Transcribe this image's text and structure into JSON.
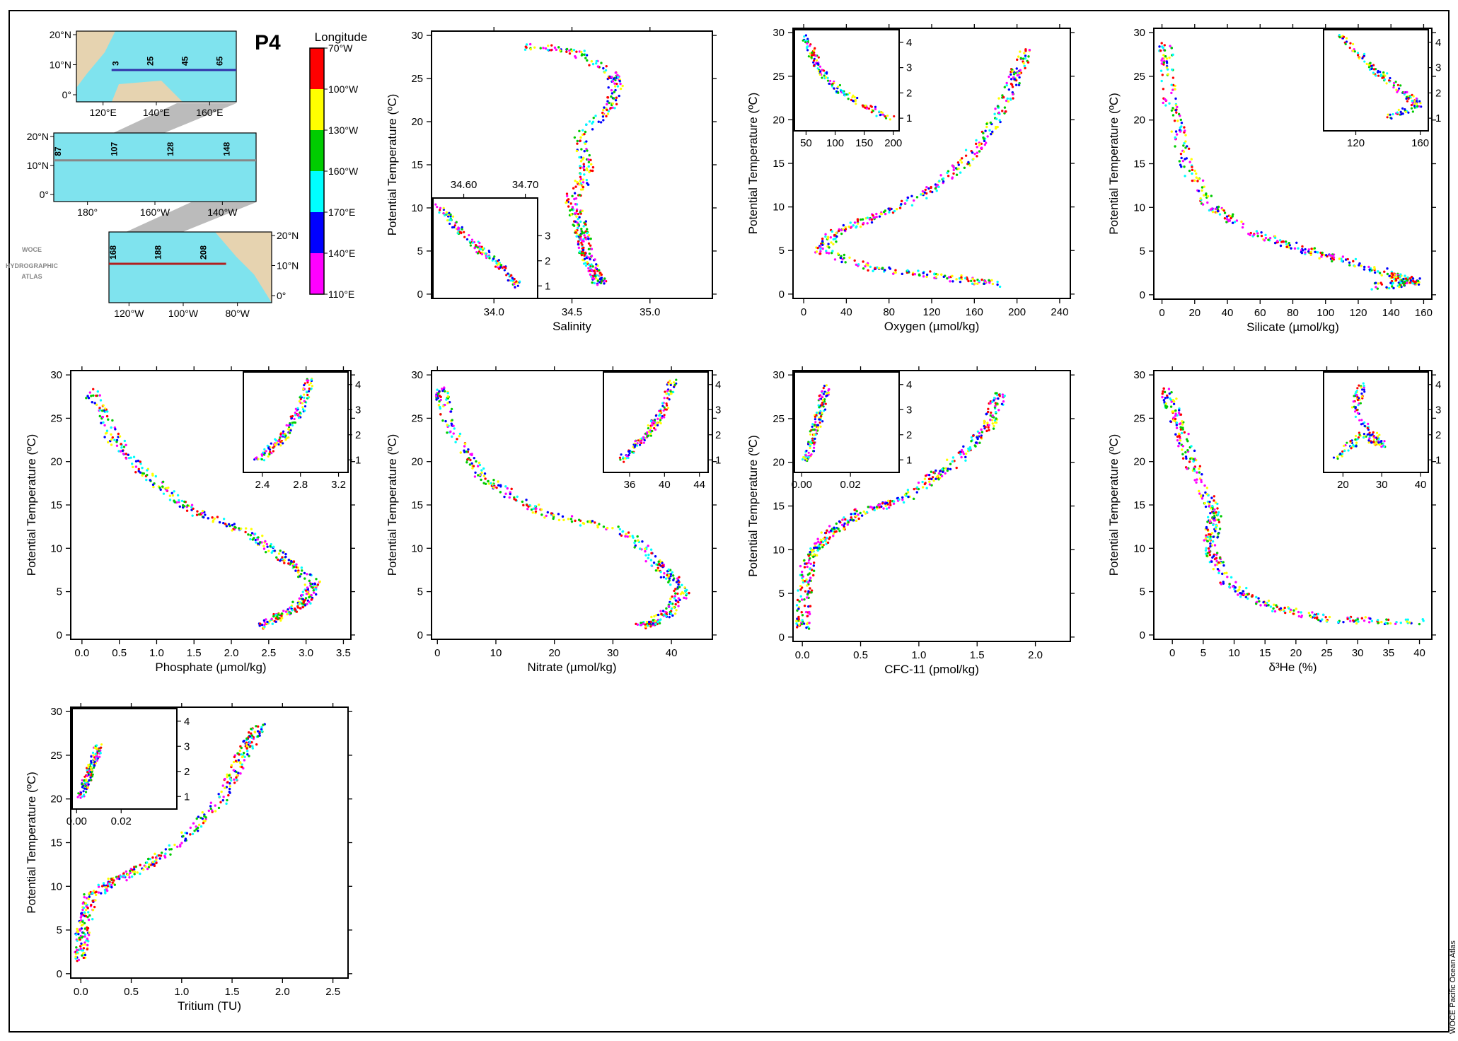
{
  "atlas_mark": [
    "WOCE",
    "HYDROGRAPHIC",
    "ATLAS"
  ],
  "section": "P4",
  "credit": "WOCE Pacific Ocean Atlas",
  "legend": {
    "title": "Longitude",
    "labels": [
      "70°W",
      "100°W",
      "130°W",
      "160°W",
      "170°E",
      "140°E",
      "110°E"
    ],
    "colors": [
      "#ff0000",
      "#ffff00",
      "#00cc00",
      "#00ffff",
      "#0000ff",
      "#ff00ff"
    ]
  },
  "maps": [
    {
      "xticks": [
        "120°E",
        "140°E",
        "160°E"
      ],
      "yticks": [
        "20°N",
        "10°N",
        "0°"
      ],
      "stations": [
        "3",
        "25",
        "45",
        "65"
      ]
    },
    {
      "xticks": [
        "180°",
        "160°W",
        "140°W"
      ],
      "yticks": [
        "20°N",
        "10°N",
        "0°"
      ],
      "stations": [
        "87",
        "107",
        "128",
        "148"
      ]
    },
    {
      "xticks": [
        "120°W",
        "100°W",
        "80°W"
      ],
      "yticks": [
        "20°N",
        "10°N",
        "0°"
      ],
      "stations": [
        "168",
        "188",
        "208"
      ]
    }
  ],
  "chart_data": [
    {
      "type": "scatter",
      "xlabel": "Salinity",
      "ylabel": "Potential Temperature (ºC)",
      "xticks": [
        "34.0",
        "34.5",
        "35.0"
      ],
      "yticks": [
        "0",
        "5",
        "10",
        "15",
        "20",
        "25",
        "30"
      ],
      "xlim": [
        33.6,
        35.4
      ],
      "ylim": [
        -0.5,
        30.5
      ],
      "profile": [
        [
          34.2,
          28.7
        ],
        [
          34.5,
          28.4
        ],
        [
          34.8,
          25
        ],
        [
          34.75,
          22
        ],
        [
          34.55,
          18
        ],
        [
          34.6,
          14
        ],
        [
          34.5,
          11
        ],
        [
          34.55,
          8
        ],
        [
          34.58,
          6
        ],
        [
          34.6,
          4
        ],
        [
          34.65,
          2.5
        ],
        [
          34.68,
          1
        ]
      ],
      "inset": {
        "xticks": [
          "34.60",
          "34.70"
        ],
        "yticks": [
          "1",
          "2",
          "3"
        ],
        "ticks_top": true,
        "xlim": [
          34.55,
          34.72
        ],
        "ylim": [
          0.5,
          4.5
        ],
        "profile": [
          [
            34.56,
            4.2
          ],
          [
            34.6,
            3
          ],
          [
            34.65,
            2
          ],
          [
            34.69,
            1
          ]
        ]
      }
    },
    {
      "type": "scatter",
      "xlabel": "Oxygen (µmol/kg)",
      "ylabel": "Potential Temperature (ºC)",
      "xticks": [
        "0",
        "40",
        "80",
        "120",
        "160",
        "200",
        "240"
      ],
      "yticks": [
        "0",
        "5",
        "10",
        "15",
        "20",
        "25",
        "30"
      ],
      "xlim": [
        -10,
        250
      ],
      "ylim": [
        -0.5,
        30.5
      ],
      "profile": [
        [
          210,
          28
        ],
        [
          195,
          24
        ],
        [
          175,
          19
        ],
        [
          150,
          15
        ],
        [
          120,
          12
        ],
        [
          70,
          9
        ],
        [
          30,
          7
        ],
        [
          15,
          5
        ],
        [
          60,
          3
        ],
        [
          130,
          2
        ],
        [
          190,
          1
        ]
      ],
      "inset": {
        "xticks": [
          "50",
          "100",
          "150",
          "200"
        ],
        "yticks": [
          "1",
          "2",
          "3",
          "4"
        ],
        "ticks_top": false,
        "xlim": [
          30,
          210
        ],
        "ylim": [
          0.5,
          4.5
        ],
        "profile": [
          [
            50,
            4.2
          ],
          [
            70,
            3
          ],
          [
            110,
            2
          ],
          [
            195,
            1
          ]
        ]
      }
    },
    {
      "type": "scatter",
      "xlabel": "Silicate (µmol/kg)",
      "ylabel": "Potential Temperature (ºC)",
      "xticks": [
        "0",
        "20",
        "40",
        "60",
        "80",
        "100",
        "120",
        "140",
        "160"
      ],
      "yticks": [
        "0",
        "5",
        "10",
        "15",
        "20",
        "25",
        "30"
      ],
      "xlim": [
        -5,
        165
      ],
      "ylim": [
        -0.5,
        30.5
      ],
      "profile": [
        [
          2,
          29
        ],
        [
          5,
          22
        ],
        [
          15,
          15
        ],
        [
          30,
          10
        ],
        [
          55,
          7
        ],
        [
          90,
          5
        ],
        [
          120,
          3.5
        ],
        [
          145,
          2
        ],
        [
          155,
          1.5
        ],
        [
          130,
          0.9
        ]
      ],
      "inset": {
        "xticks": [
          "120",
          "160"
        ],
        "yticks": [
          "1",
          "2",
          "3",
          "4"
        ],
        "ticks_top": false,
        "xlim": [
          100,
          165
        ],
        "ylim": [
          0.5,
          4.5
        ],
        "profile": [
          [
            110,
            4.3
          ],
          [
            130,
            3
          ],
          [
            150,
            2
          ],
          [
            160,
            1.5
          ],
          [
            140,
            1
          ]
        ]
      }
    },
    {
      "type": "scatter",
      "xlabel": "Phosphate (µmol/kg)",
      "ylabel": "Potential Temperature (ºC)",
      "xticks": [
        "0.0",
        "0.5",
        "1.0",
        "1.5",
        "2.0",
        "2.5",
        "3.0",
        "3.5"
      ],
      "yticks": [
        "0",
        "5",
        "10",
        "15",
        "20",
        "25",
        "30"
      ],
      "xlim": [
        -0.15,
        3.6
      ],
      "ylim": [
        -0.5,
        30.5
      ],
      "profile": [
        [
          0.1,
          28.5
        ],
        [
          0.4,
          23
        ],
        [
          0.8,
          19
        ],
        [
          1.3,
          15
        ],
        [
          2.2,
          12
        ],
        [
          2.7,
          9
        ],
        [
          3.1,
          6
        ],
        [
          3.0,
          4
        ],
        [
          2.7,
          2.5
        ],
        [
          2.4,
          1
        ]
      ],
      "inset": {
        "xticks": [
          "2.4",
          "2.8",
          "3.2"
        ],
        "yticks": [
          "1",
          "2",
          "3",
          "4"
        ],
        "ticks_top": false,
        "xlim": [
          2.2,
          3.3
        ],
        "ylim": [
          0.5,
          4.5
        ],
        "profile": [
          [
            2.35,
            1
          ],
          [
            2.6,
            1.8
          ],
          [
            2.8,
            3
          ],
          [
            2.9,
            4.2
          ]
        ]
      }
    },
    {
      "type": "scatter",
      "xlabel": "Nitrate (µmol/kg)",
      "ylabel": "Potential Temperature (ºC)",
      "xticks": [
        "0",
        "10",
        "20",
        "30",
        "40"
      ],
      "yticks": [
        "0",
        "5",
        "10",
        "15",
        "20",
        "25",
        "30"
      ],
      "xlim": [
        -1,
        47
      ],
      "ylim": [
        -0.5,
        30.5
      ],
      "profile": [
        [
          0.5,
          28.5
        ],
        [
          2,
          24
        ],
        [
          8,
          18
        ],
        [
          18,
          14
        ],
        [
          32,
          12
        ],
        [
          38,
          8
        ],
        [
          42,
          5
        ],
        [
          40,
          3
        ],
        [
          37,
          1.5
        ],
        [
          35,
          1
        ]
      ],
      "inset": {
        "xticks": [
          "36",
          "40",
          "44"
        ],
        "yticks": [
          "1",
          "2",
          "3",
          "4"
        ],
        "ticks_top": false,
        "xlim": [
          33,
          45
        ],
        "ylim": [
          0.5,
          4.5
        ],
        "profile": [
          [
            35,
            1
          ],
          [
            38,
            2
          ],
          [
            40,
            3
          ],
          [
            41,
            4.2
          ]
        ]
      }
    },
    {
      "type": "scatter",
      "xlabel": "CFC-11 (pmol/kg)",
      "ylabel": "Potential Temperature (ºC)",
      "xticks": [
        "0.0",
        "0.5",
        "1.0",
        "1.5",
        "2.0"
      ],
      "yticks": [
        "0",
        "5",
        "10",
        "15",
        "20",
        "25",
        "30"
      ],
      "xlim": [
        -0.08,
        2.3
      ],
      "ylim": [
        -0.5,
        30.5
      ],
      "profile": [
        [
          0.0,
          1
        ],
        [
          0.02,
          5
        ],
        [
          0.05,
          9
        ],
        [
          0.2,
          11.5
        ],
        [
          0.45,
          14
        ],
        [
          0.9,
          16
        ],
        [
          1.3,
          20
        ],
        [
          1.6,
          24
        ],
        [
          1.7,
          28
        ]
      ],
      "inset": {
        "xticks": [
          "0.00",
          "0.02"
        ],
        "yticks": [
          "1",
          "2",
          "3",
          "4"
        ],
        "ticks_top": false,
        "xlim": [
          -0.003,
          0.04
        ],
        "ylim": [
          0.5,
          4.5
        ],
        "profile": [
          [
            0.002,
            1
          ],
          [
            0.005,
            2
          ],
          [
            0.008,
            3
          ],
          [
            0.01,
            4
          ]
        ]
      }
    },
    {
      "type": "scatter",
      "xlabel": "δ³He (%)",
      "ylabel": "Potential Temperature (ºC)",
      "xticks": [
        "0",
        "5",
        "10",
        "15",
        "20",
        "25",
        "30",
        "35",
        "40"
      ],
      "yticks": [
        "0",
        "5",
        "10",
        "15",
        "20",
        "25",
        "30"
      ],
      "xlim": [
        -3,
        42
      ],
      "ylim": [
        -0.5,
        30.5
      ],
      "profile": [
        [
          -1,
          28.5
        ],
        [
          1,
          24
        ],
        [
          4,
          18
        ],
        [
          7,
          14
        ],
        [
          6,
          10
        ],
        [
          9,
          6
        ],
        [
          15,
          3.5
        ],
        [
          25,
          1.8
        ],
        [
          40,
          1.5
        ]
      ],
      "inset": {
        "xticks": [
          "20",
          "30",
          "40"
        ],
        "yticks": [
          "1",
          "2",
          "3",
          "4"
        ],
        "ticks_top": false,
        "xlim": [
          15,
          42
        ],
        "ylim": [
          0.5,
          4.5
        ],
        "profile": [
          [
            18,
            1
          ],
          [
            25,
            2
          ],
          [
            30,
            1.6
          ],
          [
            23,
            3
          ],
          [
            25,
            4
          ]
        ]
      }
    },
    {
      "type": "scatter",
      "xlabel": "Tritium (TU)",
      "ylabel": "Potential Temperature (ºC)",
      "xticks": [
        "0.0",
        "0.5",
        "1.0",
        "1.5",
        "2.0",
        "2.5"
      ],
      "yticks": [
        "0",
        "5",
        "10",
        "15",
        "20",
        "25",
        "30"
      ],
      "xlim": [
        -0.1,
        2.65
      ],
      "ylim": [
        -0.5,
        30.5
      ],
      "profile": [
        [
          0.0,
          1.5
        ],
        [
          0.02,
          5
        ],
        [
          0.1,
          9
        ],
        [
          0.4,
          11
        ],
        [
          0.9,
          14
        ],
        [
          1.4,
          20
        ],
        [
          1.6,
          25
        ],
        [
          1.8,
          28.5
        ]
      ],
      "inset": {
        "xticks": [
          "0.00",
          "0.02"
        ],
        "yticks": [
          "1",
          "2",
          "3",
          "4"
        ],
        "ticks_top": false,
        "xlim": [
          -0.002,
          0.045
        ],
        "ylim": [
          0.5,
          4.5
        ],
        "profile": [
          [
            0.002,
            1
          ],
          [
            0.006,
            2
          ],
          [
            0.01,
            3
          ]
        ]
      }
    }
  ]
}
